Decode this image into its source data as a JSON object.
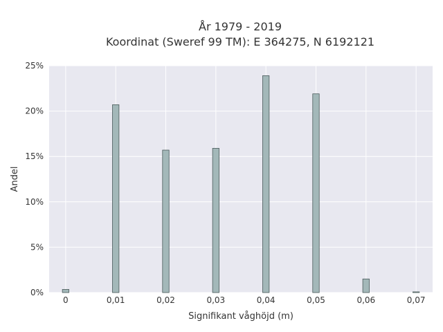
{
  "chart_data": {
    "type": "bar",
    "title_lines": [
      "År 1979 - 2019",
      "Koordinat (Sweref 99 TM): E 364275, N 6192121"
    ],
    "xlabel": "Signifikant våghöjd (m)",
    "ylabel": "Andel",
    "xlim": [
      -0.0033,
      0.0733
    ],
    "ylim": [
      0,
      25
    ],
    "x_ticks": [
      0,
      0.01,
      0.02,
      0.03,
      0.04,
      0.05,
      0.06,
      0.07
    ],
    "x_tick_labels": [
      "0",
      "0,01",
      "0,02",
      "0,03",
      "0,04",
      "0,05",
      "0,06",
      "0,07"
    ],
    "y_ticks": [
      0,
      5,
      10,
      15,
      20,
      25
    ],
    "y_tick_labels": [
      "0%",
      "5%",
      "10%",
      "15%",
      "20%",
      "25%"
    ],
    "bar_width": 0.0013,
    "x": [
      0,
      0.01,
      0.02,
      0.03,
      0.04,
      0.05,
      0.06,
      0.07
    ],
    "values": [
      0.35,
      20.7,
      15.7,
      15.9,
      23.9,
      21.9,
      1.5,
      0.08
    ],
    "grid": true,
    "colors": {
      "bar_fill": "#a3b8b9",
      "bar_edge": "#4a5a5a",
      "plot_bg": "#e8e8f0",
      "grid": "#ffffff"
    }
  }
}
